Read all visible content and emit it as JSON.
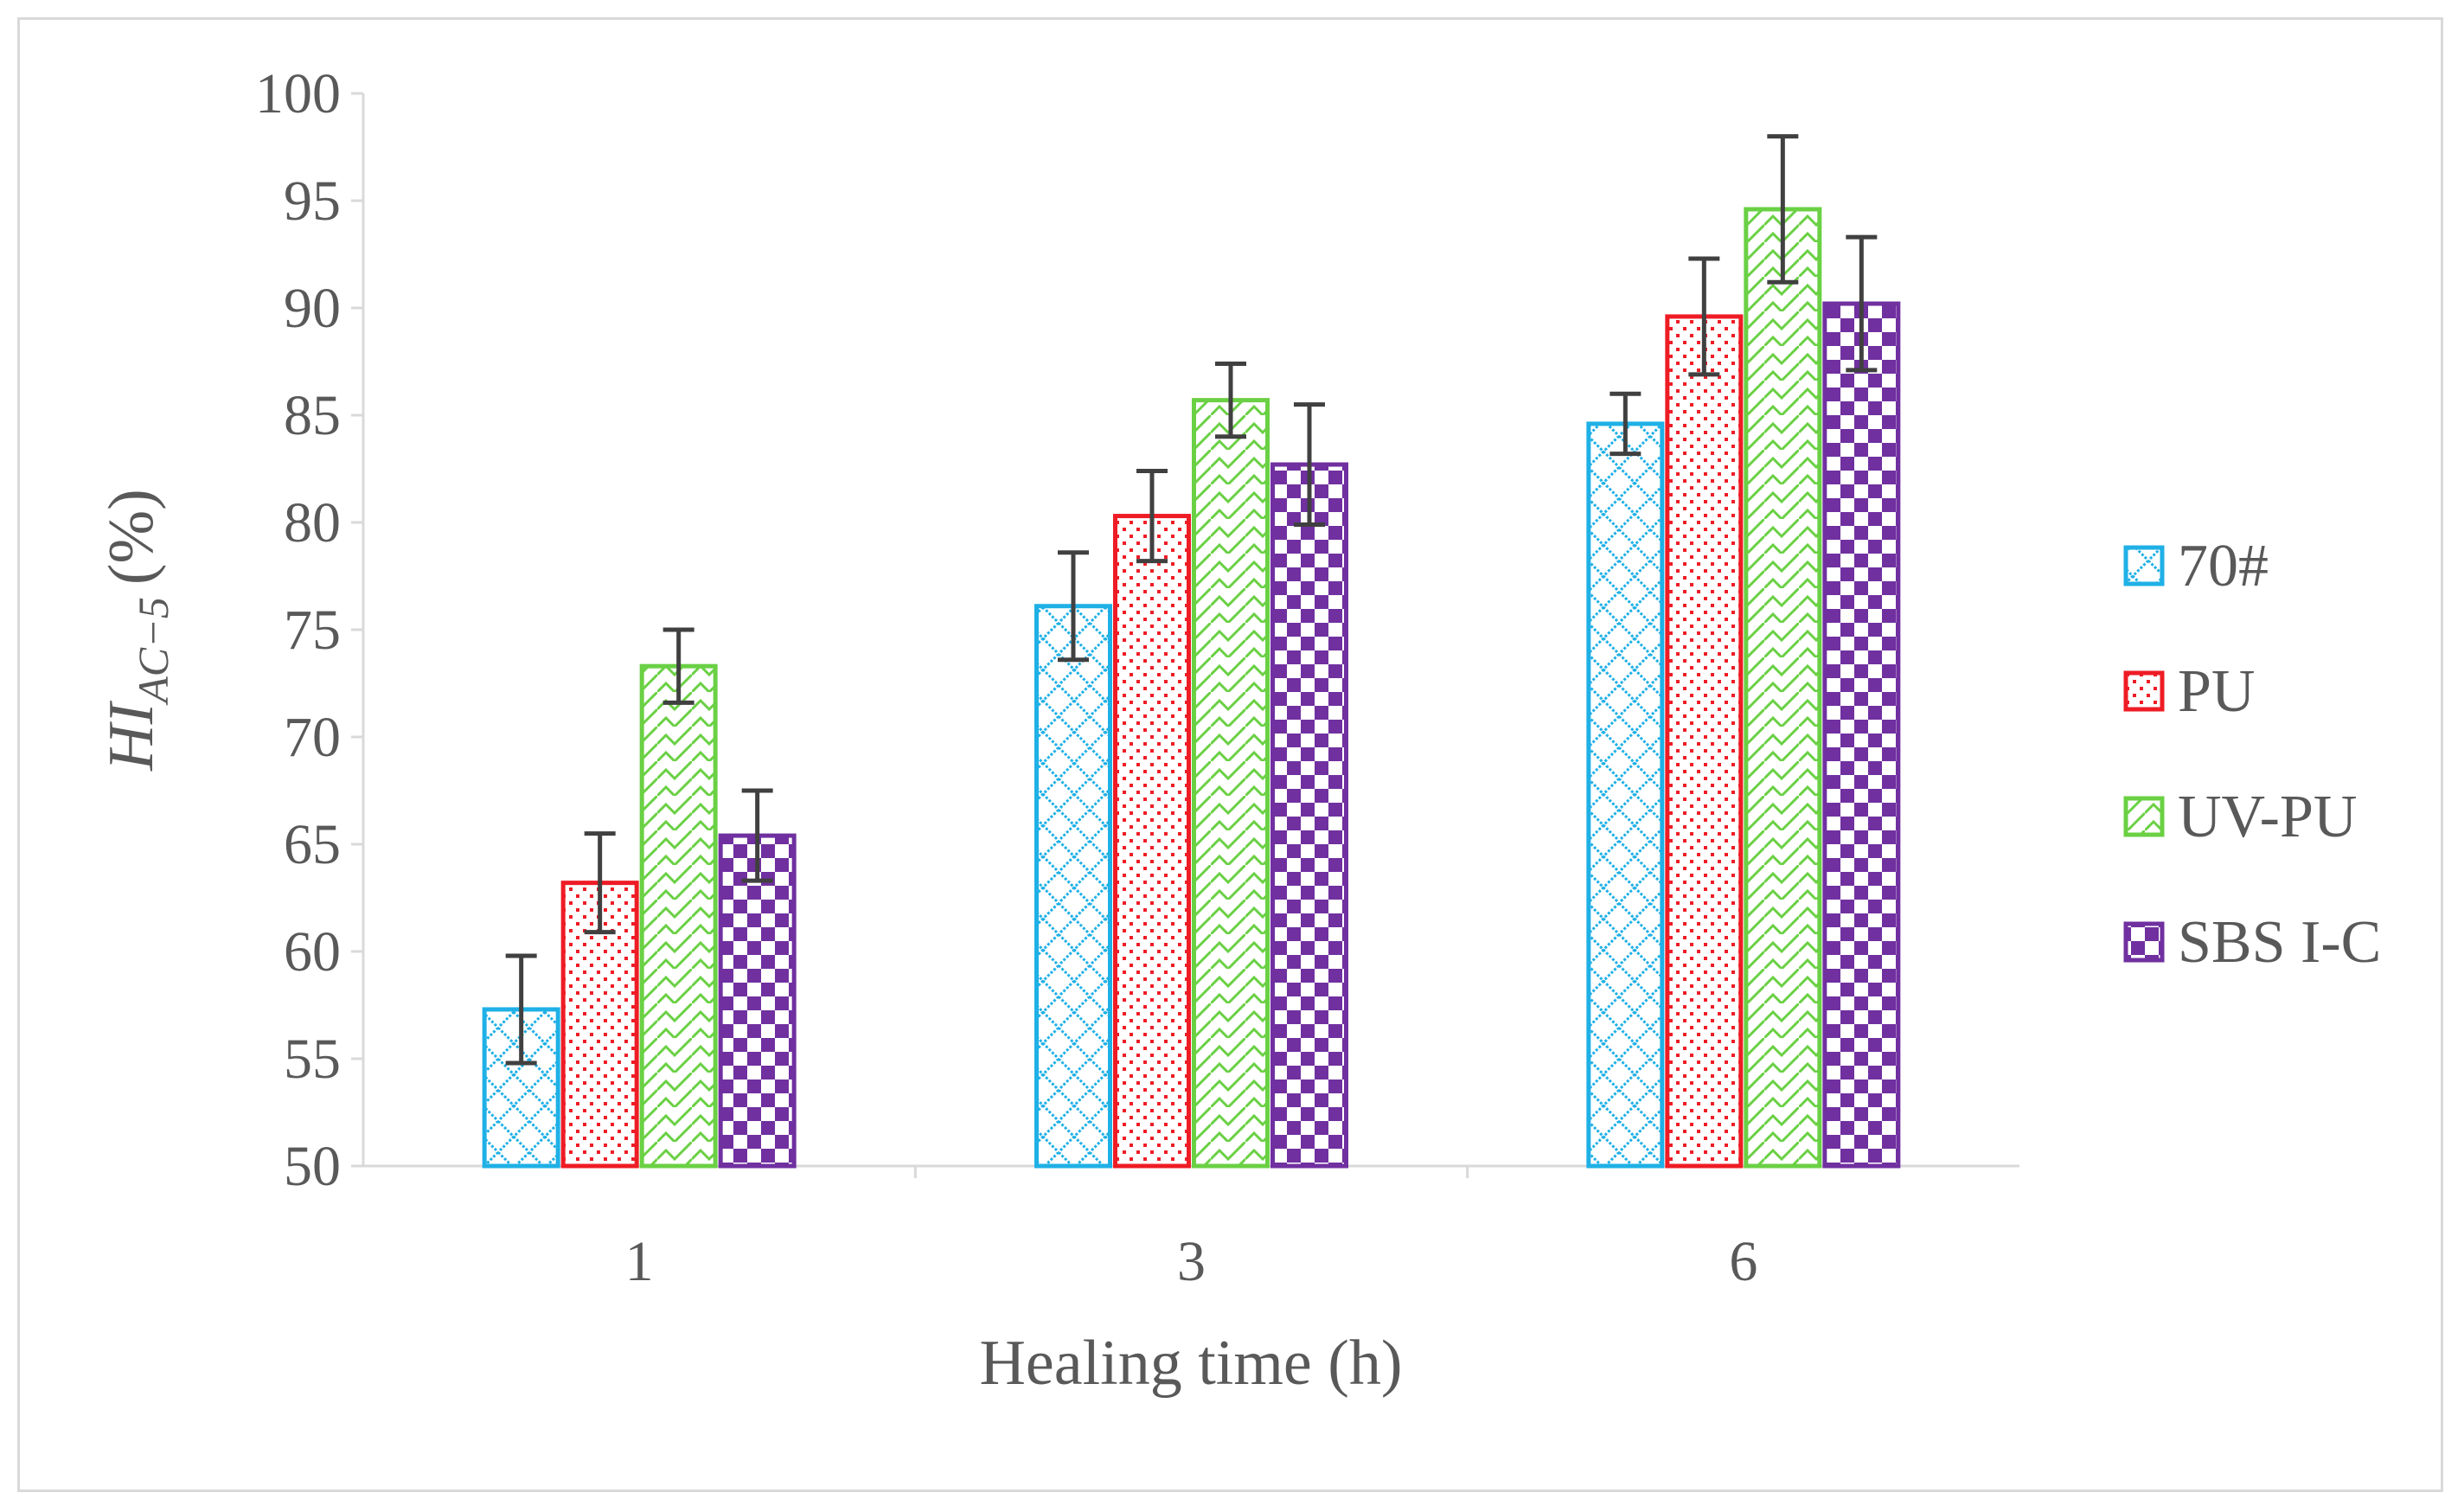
{
  "chart_data": {
    "type": "bar",
    "title": "",
    "xlabel": "Healing time (h)",
    "ylabel": {
      "main": "HI",
      "subscript": "AC−5",
      "unit": "(%)"
    },
    "categories": [
      "1",
      "3",
      "6"
    ],
    "ylim": [
      50,
      100
    ],
    "yticks": [
      50,
      55,
      60,
      65,
      70,
      75,
      80,
      85,
      90,
      95,
      100
    ],
    "grid": false,
    "legend_position": "right",
    "series": [
      {
        "name": "70#",
        "color": "#1fb0e6",
        "pattern": "diamond-lattice",
        "values": [
          57.3,
          76.1,
          84.6
        ],
        "errors": [
          2.5,
          2.5,
          1.4
        ]
      },
      {
        "name": "PU",
        "color": "#ee1c25",
        "pattern": "dots",
        "values": [
          63.2,
          80.3,
          89.6
        ],
        "errors": [
          2.3,
          2.1,
          2.7
        ]
      },
      {
        "name": "UV-PU",
        "color": "#6ad044",
        "pattern": "diagonal-zigzag",
        "values": [
          73.3,
          85.7,
          94.6
        ],
        "errors": [
          1.7,
          1.7,
          3.4
        ]
      },
      {
        "name": "SBS I-C",
        "color": "#7030a0",
        "pattern": "checkerboard",
        "values": [
          65.4,
          82.7,
          90.2
        ],
        "errors": [
          2.1,
          2.8,
          3.1
        ]
      }
    ]
  }
}
